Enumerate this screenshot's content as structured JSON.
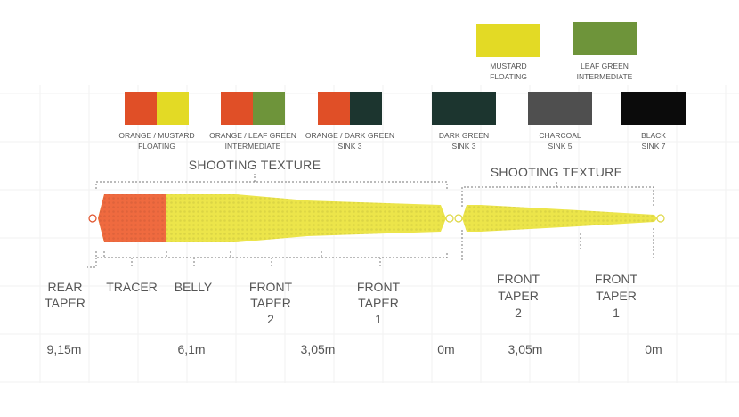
{
  "swatches_top": [
    {
      "label1": "MUSTARD",
      "label2": "FLOATING",
      "colors": [
        "#e3da25"
      ]
    },
    {
      "label1": "LEAF GREEN",
      "label2": "INTERMEDIATE",
      "colors": [
        "#6e943a"
      ]
    }
  ],
  "swatches_bottom": [
    {
      "label1": "ORANGE / MUSTARD",
      "label2": "FLOATING",
      "colors": [
        "#e04f27",
        "#e3da25"
      ]
    },
    {
      "label1": "ORANGE / LEAF GREEN",
      "label2": "INTERMEDIATE",
      "colors": [
        "#e04f27",
        "#6e943a"
      ]
    },
    {
      "label1": "ORANGE / DARK GREEN",
      "label2": "SINK 3",
      "colors": [
        "#e04f27",
        "#1c352f"
      ]
    },
    {
      "label1": "DARK GREEN",
      "label2": "SINK 3",
      "colors": [
        "#1c352f"
      ]
    },
    {
      "label1": "CHARCOAL",
      "label2": "SINK 5",
      "colors": [
        "#4f4f4f"
      ]
    },
    {
      "label1": "BLACK",
      "label2": "SINK 7",
      "colors": [
        "#0b0b0b"
      ]
    }
  ],
  "line1": {
    "title": "SHOOTING TEXTURE",
    "head_color": "#ef6a3f",
    "body_color": "#ece54a"
  },
  "line2": {
    "title": "SHOOTING TEXTURE",
    "body_color": "#ece54a"
  },
  "sections1": [
    {
      "lines": [
        "REAR",
        "TAPER"
      ]
    },
    {
      "lines": [
        "TRACER"
      ]
    },
    {
      "lines": [
        "BELLY"
      ]
    },
    {
      "lines": [
        "FRONT",
        "TAPER",
        "2"
      ]
    },
    {
      "lines": [
        "FRONT",
        "TAPER",
        "1"
      ]
    }
  ],
  "sections2": [
    {
      "lines": [
        "FRONT",
        "TAPER",
        "2"
      ]
    },
    {
      "lines": [
        "FRONT",
        "TAPER",
        "1"
      ]
    }
  ],
  "distances": [
    "9,15m",
    "6,1m",
    "3,05m",
    "0m",
    "3,05m",
    "0m"
  ]
}
